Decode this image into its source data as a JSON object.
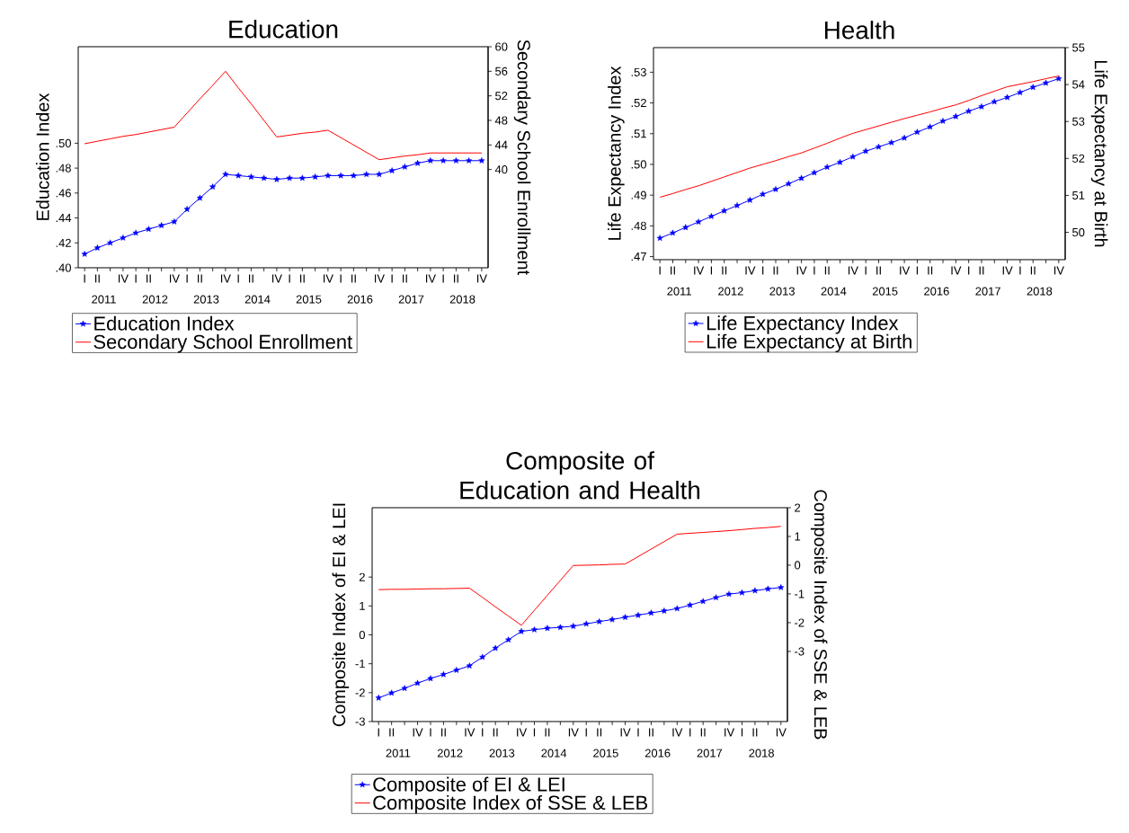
{
  "chart_data": [
    {
      "type": "line",
      "title": "Education",
      "ylabel": "Education Index",
      "y2label": "Secondary School Enrollment",
      "categories": [
        "I",
        "II",
        null,
        "IV",
        "I",
        "II",
        null,
        "IV",
        "I",
        "II",
        null,
        "IV",
        "I",
        "II",
        null,
        "IV",
        "I",
        "II",
        null,
        "IV",
        "I",
        "II",
        null,
        "IV",
        "I",
        "II",
        null,
        "IV",
        "I",
        "II",
        null,
        "IV"
      ],
      "annotations": [
        "2011",
        "2012",
        "2013",
        "2014",
        "2015",
        "2016",
        "2017",
        "2018"
      ],
      "series": [
        {
          "name": "Education Index",
          "color": "#0000ff",
          "marker": "star",
          "values": [
            0.411,
            0.416,
            0.42,
            0.424,
            0.428,
            0.431,
            0.434,
            0.437,
            0.447,
            0.456,
            0.465,
            0.475,
            0.474,
            0.473,
            0.472,
            0.471,
            0.472,
            0.472,
            0.473,
            0.474,
            0.474,
            0.474,
            0.475,
            0.475,
            0.478,
            0.481,
            0.484,
            0.486,
            0.486,
            0.486,
            0.486,
            0.486
          ]
        },
        {
          "name": "Secondary School Enrollment",
          "color": "#ff0000",
          "axis": "y2",
          "values": [
            44.2,
            44.6,
            45.0,
            45.4,
            45.7,
            46.1,
            46.5,
            46.9,
            49.2,
            51.5,
            53.7,
            56.0,
            53.3,
            50.7,
            48.0,
            45.3,
            45.6,
            45.9,
            46.1,
            46.4,
            45.2,
            44.0,
            42.8,
            41.6,
            41.9,
            42.2,
            42.4,
            42.7,
            42.7,
            42.7,
            42.7,
            42.7
          ]
        }
      ],
      "ylim": [
        0.4,
        0.5775
      ],
      "yticks": [
        {
          "value": 0.4,
          "label": ".40"
        },
        {
          "value": 0.42,
          "label": ".42"
        },
        {
          "value": 0.44,
          "label": ".44"
        },
        {
          "value": 0.46,
          "label": ".46"
        },
        {
          "value": 0.48,
          "label": ".48"
        },
        {
          "value": 0.5,
          "label": ".50"
        }
      ],
      "y2lim": [
        24,
        60
      ],
      "y2ticks": [
        40,
        44,
        48,
        52,
        56,
        60
      ],
      "legend": "bottom"
    },
    {
      "type": "line",
      "title": "Health",
      "ylabel": "Life Expectancy Index",
      "y2label": "Life Expectancy at Birth",
      "categories": [
        "I",
        "II",
        null,
        "IV",
        "I",
        "II",
        null,
        "IV",
        "I",
        "II",
        null,
        "IV",
        "I",
        "II",
        null,
        "IV",
        "I",
        "II",
        null,
        "IV",
        "I",
        "II",
        null,
        "IV",
        "I",
        "II",
        null,
        "IV",
        "I",
        "II",
        null,
        "IV"
      ],
      "annotations": [
        "2011",
        "2012",
        "2013",
        "2014",
        "2015",
        "2016",
        "2017",
        "2018"
      ],
      "series": [
        {
          "name": "Life Expectancy Index",
          "color": "#0000ff",
          "marker": "star",
          "values": [
            0.476,
            0.4777,
            0.4795,
            0.4813,
            0.4831,
            0.4849,
            0.4866,
            0.4884,
            0.4903,
            0.4919,
            0.4937,
            0.4955,
            0.4973,
            0.4991,
            0.5007,
            0.5025,
            0.5043,
            0.5057,
            0.5071,
            0.5086,
            0.5105,
            0.5122,
            0.5141,
            0.5156,
            0.5173,
            0.5188,
            0.5204,
            0.5218,
            0.5234,
            0.5251,
            0.5265,
            0.5279
          ]
        },
        {
          "name": "Life Expectancy at Birth",
          "color": "#ff0000",
          "axis": "y2",
          "values": [
            50.95,
            51.05,
            51.16,
            51.26,
            51.38,
            51.5,
            51.62,
            51.74,
            51.84,
            51.94,
            52.05,
            52.15,
            52.28,
            52.41,
            52.55,
            52.68,
            52.78,
            52.88,
            52.98,
            53.08,
            53.17,
            53.26,
            53.36,
            53.45,
            53.57,
            53.7,
            53.82,
            53.94,
            54.01,
            54.08,
            54.16,
            54.23
          ]
        }
      ],
      "ylim": [
        0.469,
        0.538
      ],
      "yticks": [
        {
          "value": 0.47,
          "label": ".47"
        },
        {
          "value": 0.48,
          "label": ".48"
        },
        {
          "value": 0.49,
          "label": ".49"
        },
        {
          "value": 0.5,
          "label": ".50"
        },
        {
          "value": 0.51,
          "label": ".51"
        },
        {
          "value": 0.52,
          "label": ".52"
        },
        {
          "value": 0.53,
          "label": ".53"
        }
      ],
      "y2lim": [
        49.26,
        55
      ],
      "y2ticks": [
        50,
        51,
        52,
        53,
        54,
        55
      ],
      "legend": "bottom"
    },
    {
      "type": "line",
      "title": "Composite of Education and Health",
      "ylabel": "Composite Index of EI & LEI",
      "y2label": "Composite Index of SSE & LEB",
      "categories": [
        "I",
        "II",
        null,
        "IV",
        "I",
        "II",
        null,
        "IV",
        "I",
        "II",
        null,
        "IV",
        "I",
        "II",
        null,
        "IV",
        "I",
        "II",
        null,
        "IV",
        "I",
        "II",
        null,
        "IV",
        "I",
        "II",
        null,
        "IV",
        "I",
        "II",
        null,
        "IV"
      ],
      "annotations": [
        "2011",
        "2012",
        "2013",
        "2014",
        "2015",
        "2016",
        "2017",
        "2018"
      ],
      "series": [
        {
          "name": "Composite of EI & LEI",
          "color": "#0000ff",
          "marker": "star",
          "values": [
            -2.18,
            -2.01,
            -1.85,
            -1.67,
            -1.51,
            -1.37,
            -1.22,
            -1.07,
            -0.77,
            -0.46,
            -0.17,
            0.12,
            0.18,
            0.23,
            0.26,
            0.3,
            0.38,
            0.46,
            0.53,
            0.61,
            0.68,
            0.76,
            0.83,
            0.91,
            1.03,
            1.16,
            1.29,
            1.41,
            1.46,
            1.53,
            1.59,
            1.64
          ]
        },
        {
          "name": "Composite Index of SSE & LEB",
          "color": "#ff0000",
          "axis": "y2",
          "values": [
            -0.85,
            -0.84,
            -0.84,
            -0.83,
            -0.82,
            -0.82,
            -0.81,
            -0.8,
            -1.12,
            -1.45,
            -1.77,
            -2.09,
            -1.57,
            -1.05,
            -0.53,
            -0.01,
            0.0,
            0.01,
            0.03,
            0.04,
            0.3,
            0.56,
            0.82,
            1.08,
            1.11,
            1.14,
            1.17,
            1.2,
            1.24,
            1.28,
            1.31,
            1.35
          ]
        }
      ],
      "ylim": [
        -3,
        4.4
      ],
      "yticks": [
        -3,
        -2,
        -1,
        0,
        1,
        2
      ],
      "y2lim": [
        -5.44,
        2
      ],
      "y2ticks": [
        -3,
        -2,
        -1,
        0,
        1,
        2
      ],
      "legend": "bottom"
    }
  ]
}
